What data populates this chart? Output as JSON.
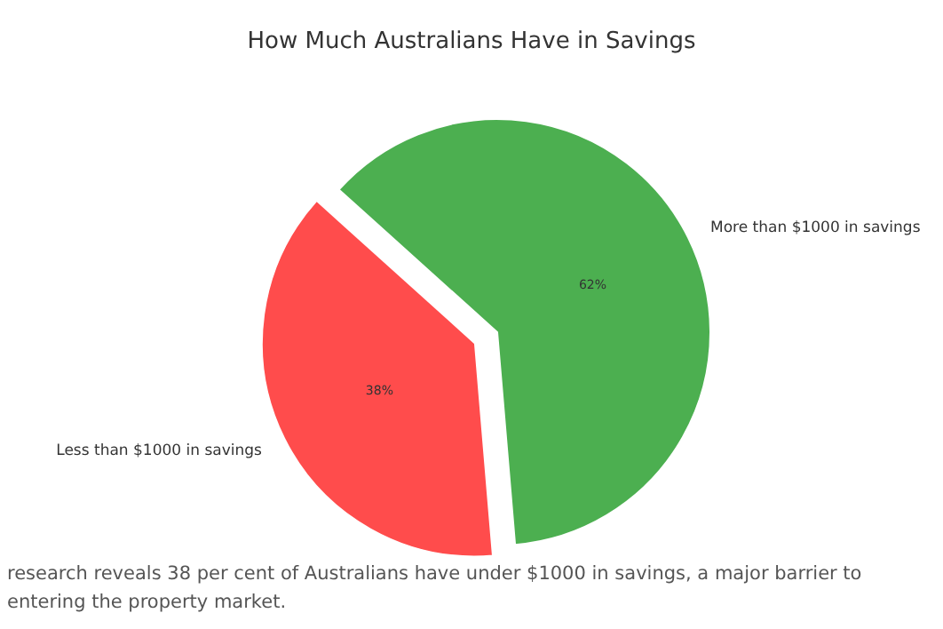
{
  "chart_data": {
    "type": "pie",
    "title": "How Much Australians Have in Savings",
    "categories": [
      "More than $1000 in savings",
      "Less than $1000 in savings"
    ],
    "values": [
      62,
      38
    ],
    "colors": [
      "#4caf50",
      "#ff4c4c"
    ],
    "value_labels": [
      "62%",
      "38%"
    ],
    "annotations": [
      "research reveals 38 per cent of Australians have under $1000 in savings, a major barrier to entering the property market."
    ]
  }
}
